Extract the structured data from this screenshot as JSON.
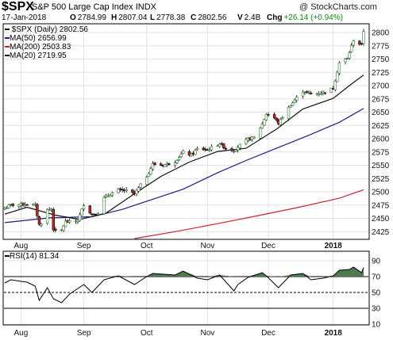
{
  "header": {
    "symbol": "$SPX",
    "name": "S&P 500 Large Cap Index",
    "exchange": "INDX",
    "watermark": "@ StockCharts.com",
    "date": "17-Jan-2018",
    "open_label": "O",
    "open": "2784.99",
    "high_label": "H",
    "high": "2807.04",
    "low_label": "L",
    "low": "2778.38",
    "close_label": "C",
    "close": "2802.56",
    "volume_label": "V",
    "volume": "2.4B",
    "change_label": "Chg",
    "change": "+26.14 (+0.94%)"
  },
  "legend": {
    "price": "$SPX (Daily) 2802.56",
    "ma50": "MA(50) 2656.99",
    "ma200": "MA(200) 2503.83",
    "ma20": "MA(20) 2719.95"
  },
  "colors": {
    "up": "#2e7d32",
    "down": "#c62828",
    "ma50": "#1a1a8c",
    "ma200": "#cc2233",
    "ma20": "#111111",
    "rsi_fill": "#4f7a4f",
    "grid": "#e1e1e1"
  },
  "chart_data": [
    {
      "type": "line",
      "title": "$SPX (Daily)",
      "subtype": "ohlc-bars",
      "ylim": [
        2412,
        2815
      ],
      "yticks": [
        2425,
        2450,
        2475,
        2500,
        2525,
        2550,
        2575,
        2600,
        2625,
        2650,
        2675,
        2700,
        2725,
        2750,
        2775,
        2800
      ],
      "xlim": [
        "2017-07-24",
        "2018-01-17"
      ],
      "xticks": [
        {
          "label": "Aug",
          "date": "2017-08-01"
        },
        {
          "label": "Sep",
          "date": "2017-09-01"
        },
        {
          "label": "Oct",
          "date": "2017-10-02"
        },
        {
          "label": "Nov",
          "date": "2017-11-01"
        },
        {
          "label": "Dec",
          "date": "2017-12-01"
        },
        {
          "label": "2018",
          "date": "2018-01-02"
        }
      ],
      "grid": true,
      "legend_position": "top-left",
      "close_series": {
        "x": [
          "2017-07-24",
          "2017-07-27",
          "2017-08-01",
          "2017-08-04",
          "2017-08-08",
          "2017-08-10",
          "2017-08-11",
          "2017-08-14",
          "2017-08-16",
          "2017-08-17",
          "2017-08-18",
          "2017-08-21",
          "2017-08-23",
          "2017-08-25",
          "2017-08-29",
          "2017-09-01",
          "2017-09-05",
          "2017-09-08",
          "2017-09-11",
          "2017-09-14",
          "2017-09-18",
          "2017-09-22",
          "2017-09-26",
          "2017-10-02",
          "2017-10-05",
          "2017-10-10",
          "2017-10-16",
          "2017-10-20",
          "2017-10-24",
          "2017-10-27",
          "2017-11-01",
          "2017-11-07",
          "2017-11-10",
          "2017-11-14",
          "2017-11-16",
          "2017-11-21",
          "2017-11-24",
          "2017-11-28",
          "2017-11-30",
          "2017-12-04",
          "2017-12-06",
          "2017-12-12",
          "2017-12-18",
          "2017-12-22",
          "2017-12-28",
          "2018-01-02",
          "2018-01-05",
          "2018-01-09",
          "2018-01-12",
          "2018-01-16",
          "2018-01-17"
        ],
        "y": [
          2469,
          2475,
          2476,
          2477,
          2474,
          2438,
          2441,
          2466,
          2468,
          2430,
          2425,
          2428,
          2444,
          2443,
          2446,
          2476,
          2457,
          2461,
          2488,
          2496,
          2503,
          2502,
          2496,
          2529,
          2552,
          2550,
          2557,
          2575,
          2569,
          2581,
          2579,
          2591,
          2582,
          2578,
          2585,
          2599,
          2602,
          2627,
          2647,
          2639,
          2629,
          2664,
          2690,
          2684,
          2687,
          2695,
          2743,
          2751,
          2786,
          2776,
          2803
        ]
      },
      "series": [
        {
          "name": "MA(50)",
          "x": [
            "2017-07-24",
            "2017-08-15",
            "2017-09-05",
            "2017-09-20",
            "2017-10-05",
            "2017-10-20",
            "2017-11-06",
            "2017-11-20",
            "2017-12-05",
            "2017-12-20",
            "2018-01-05",
            "2018-01-17"
          ],
          "y": [
            2442,
            2451,
            2453,
            2467,
            2486,
            2505,
            2536,
            2559,
            2582,
            2605,
            2631,
            2657
          ]
        },
        {
          "name": "MA(200)",
          "x": [
            "2017-09-26",
            "2017-10-16",
            "2017-11-06",
            "2017-11-27",
            "2017-12-15",
            "2018-01-05",
            "2018-01-17"
          ],
          "y": [
            2412,
            2425,
            2440,
            2456,
            2470,
            2488,
            2504
          ]
        },
        {
          "name": "MA(20)",
          "x": [
            "2017-07-24",
            "2017-08-04",
            "2017-08-18",
            "2017-08-30",
            "2017-09-12",
            "2017-09-25",
            "2017-10-09",
            "2017-10-23",
            "2017-11-06",
            "2017-11-20",
            "2017-12-05",
            "2017-12-18",
            "2018-01-02",
            "2018-01-10",
            "2018-01-17"
          ],
          "y": [
            2458,
            2471,
            2456,
            2448,
            2460,
            2494,
            2529,
            2556,
            2576,
            2582,
            2618,
            2656,
            2676,
            2700,
            2720
          ]
        }
      ]
    },
    {
      "type": "area",
      "title": "RSI(14)",
      "value_label": "RSI(14) 81.34",
      "ylim": [
        10,
        100
      ],
      "yticks": [
        10,
        30,
        50,
        70,
        90
      ],
      "reference_lines": [
        30,
        50,
        70
      ],
      "shade_above": 70,
      "xlim": [
        "2017-07-24",
        "2018-01-17"
      ],
      "x": [
        "2017-07-24",
        "2017-07-27",
        "2017-08-01",
        "2017-08-04",
        "2017-08-08",
        "2017-08-10",
        "2017-08-14",
        "2017-08-17",
        "2017-08-21",
        "2017-08-25",
        "2017-09-01",
        "2017-09-05",
        "2017-09-11",
        "2017-09-18",
        "2017-09-26",
        "2017-10-02",
        "2017-10-05",
        "2017-10-16",
        "2017-10-20",
        "2017-10-27",
        "2017-11-01",
        "2017-11-07",
        "2017-11-14",
        "2017-11-16",
        "2017-11-21",
        "2017-11-28",
        "2017-11-30",
        "2017-12-06",
        "2017-12-12",
        "2017-12-18",
        "2017-12-22",
        "2017-12-28",
        "2018-01-02",
        "2018-01-05",
        "2018-01-10",
        "2018-01-12",
        "2018-01-16",
        "2018-01-17"
      ],
      "y": [
        62,
        66,
        64,
        63,
        58,
        40,
        56,
        42,
        37,
        48,
        60,
        50,
        66,
        71,
        60,
        70,
        74,
        72,
        77,
        68,
        66,
        72,
        52,
        60,
        69,
        75,
        71,
        56,
        72,
        74,
        66,
        68,
        71,
        78,
        79,
        82,
        75,
        81.34
      ]
    }
  ]
}
